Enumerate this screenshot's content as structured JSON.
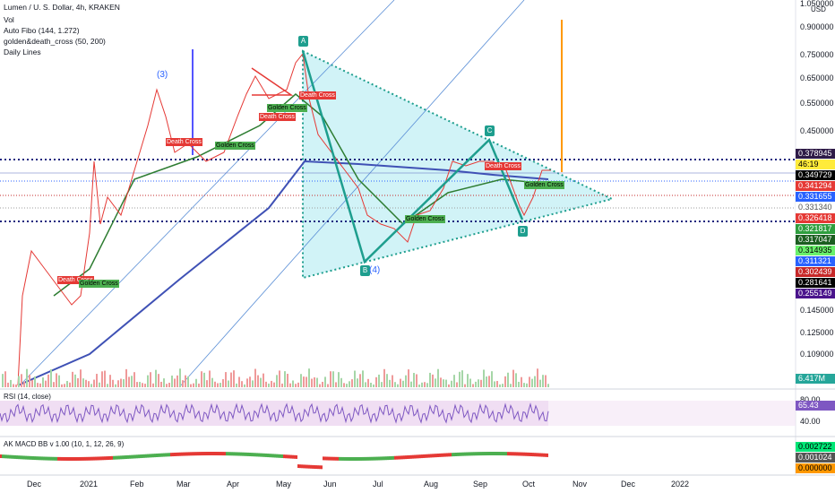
{
  "header": {
    "symbol": "Lumen / U. S. Dollar, 4h, KRAKEN",
    "indicators": [
      "Vol",
      "Auto Fibo (144, 1.272)",
      "golden&death_cross (50, 200)",
      "Daily Lines"
    ]
  },
  "price_axis": {
    "labels": [
      "1.050000",
      "0.900000",
      "0.750000",
      "0.650000",
      "0.550000",
      "0.450000",
      "0.145000",
      "0.125000",
      "0.109000"
    ],
    "currency": "USD"
  },
  "price_tags": [
    {
      "label": "0.378945",
      "color": "#2e1a47",
      "text": "#ffffff"
    },
    {
      "label": "46:19",
      "color": "#ffeb3b",
      "text": "#000000"
    },
    {
      "label": "0.349729",
      "color": "#000000",
      "text": "#ffffff"
    },
    {
      "label": "0.341294",
      "color": "#e53935",
      "text": "#ffffff"
    },
    {
      "label": "0.331655",
      "color": "#2962ff",
      "text": "#ffffff"
    },
    {
      "label": "0.331340",
      "color": "#ffffff",
      "text": "#555555"
    },
    {
      "label": "0.326418",
      "color": "#e53935",
      "text": "#ffffff"
    },
    {
      "label": "0.321817",
      "color": "#2e9e3e",
      "text": "#ffffff"
    },
    {
      "label": "0.317047",
      "color": "#1b5e20",
      "text": "#ffffff"
    },
    {
      "label": "0.314935",
      "color": "#69f06b",
      "text": "#000000"
    },
    {
      "label": "0.311321",
      "color": "#2962ff",
      "text": "#ffffff"
    },
    {
      "label": "0.302439",
      "color": "#c62828",
      "text": "#ffffff"
    },
    {
      "label": "0.281641",
      "color": "#000000",
      "text": "#ffffff"
    },
    {
      "label": "0.255149",
      "color": "#4a148c",
      "text": "#ffffff"
    }
  ],
  "volume_tag": {
    "label": "6.417M",
    "color": "#26a69a"
  },
  "time_axis": [
    "Dec",
    "2021",
    "Feb",
    "Mar",
    "Apr",
    "May",
    "Jun",
    "Jul",
    "Aug",
    "Sep",
    "Oct",
    "Nov",
    "Dec",
    "2022"
  ],
  "pattern_labels": [
    "A",
    "B",
    "C",
    "D"
  ],
  "wave_labels": [
    "(3)",
    "(4)"
  ],
  "cross_labels": [
    "Death Cross",
    "Golden Cross",
    "Death Cross",
    "Golden Cross",
    "Golden Cross",
    "Death Cross",
    "Death Cross",
    "Golden Cross",
    "Death Cross",
    "Golden Cross"
  ],
  "rsi": {
    "title": "RSI (14, close)",
    "ticks": [
      "80.00",
      "40.00"
    ],
    "value": "65.43"
  },
  "macd": {
    "title": "AK MACD BB v 1.00 (10, 1, 12, 26, 9)",
    "values": [
      {
        "label": "0.002722",
        "color": "#00e676",
        "text": "#000000"
      },
      {
        "label": "0.001024",
        "color": "#555555",
        "text": "#ffffff"
      },
      {
        "label": "0.000000",
        "color": "#ff9800",
        "text": "#000000"
      }
    ]
  }
}
